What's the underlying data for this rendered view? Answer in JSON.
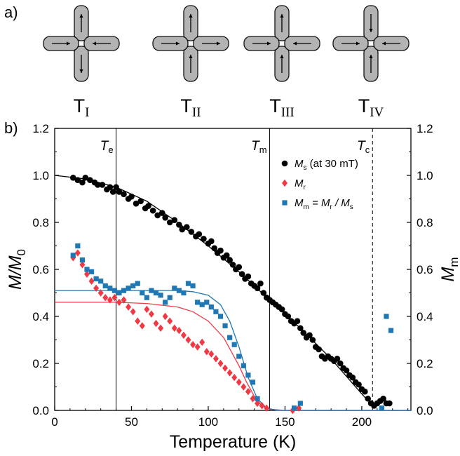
{
  "panel_a": {
    "label": "a)",
    "vertices": [
      {
        "name": "T",
        "sub": "I",
        "arrows": {
          "top": "up",
          "bottom": "down",
          "left": "right",
          "right": "left"
        }
      },
      {
        "name": "T",
        "sub": "II",
        "arrows": {
          "top": "up",
          "bottom": "up",
          "left": "right",
          "right": "right"
        }
      },
      {
        "name": "T",
        "sub": "III",
        "arrows": {
          "top": "up",
          "bottom": "up",
          "left": "right",
          "right": "left"
        }
      },
      {
        "name": "T",
        "sub": "IV",
        "arrows": {
          "top": "down",
          "bottom": "up",
          "left": "right",
          "right": "left"
        }
      }
    ],
    "colors": {
      "arm_fill": "#b3b3b3",
      "arm_stroke": "#111111"
    }
  },
  "panel_b": {
    "label": "b)"
  },
  "chart_data": {
    "type": "scatter",
    "xlabel": "Temperature (K)",
    "ylabel_main": "M/M",
    "ylabel_main_sub": "0",
    "ylabel_right": "M",
    "ylabel_right_sub": "m",
    "xlim": [
      0,
      232
    ],
    "ylim": [
      0,
      1.2
    ],
    "xticks": [
      "0",
      "50",
      "100",
      "150",
      "200"
    ],
    "xtick_values": [
      0,
      50,
      100,
      150,
      200
    ],
    "yticks": [
      "0.0",
      "0.2",
      "0.4",
      "0.6",
      "0.8",
      "1.0",
      "1.2"
    ],
    "ytick_values": [
      0,
      0.2,
      0.4,
      0.6,
      0.8,
      1.0,
      1.2
    ],
    "vertical_lines": [
      {
        "label": "T",
        "sub": "e",
        "x": 40,
        "style": "solid"
      },
      {
        "label": "T",
        "sub": "m",
        "x": 140,
        "style": "solid"
      },
      {
        "label": "T",
        "sub": "c",
        "x": 207,
        "style": "dashed"
      }
    ],
    "legend": [
      {
        "series": "Ms",
        "text": "M",
        "sub": "s",
        "extra": " (at 30 mT)"
      },
      {
        "series": "Mr",
        "text": "M",
        "sub": "r",
        "extra": ""
      },
      {
        "series": "Mm",
        "text": "M",
        "sub": "m",
        "extra": " = M",
        "sub2": "r",
        "extra2": " / M",
        "sub3": "s"
      }
    ],
    "series": [
      {
        "name": "Ms",
        "marker": "circle",
        "color": "#000000",
        "x": [
          12,
          15,
          18,
          20,
          23,
          26,
          28,
          31,
          34,
          36,
          38,
          40,
          42,
          45,
          48,
          50,
          53,
          56,
          59,
          61,
          64,
          67,
          70,
          72,
          75,
          78,
          81,
          83,
          86,
          89,
          92,
          94,
          97,
          100,
          102,
          104,
          106,
          108,
          110,
          112,
          114,
          116,
          118,
          120,
          122,
          124,
          126,
          128,
          130,
          132,
          134,
          136,
          138,
          140,
          142,
          144,
          146,
          148,
          150,
          152,
          154,
          156,
          158,
          160,
          162,
          164,
          166,
          168,
          170,
          172,
          174,
          176,
          178,
          180,
          182,
          184,
          186,
          188,
          190,
          192,
          194,
          196,
          198,
          200,
          202,
          204,
          206,
          208,
          210,
          212,
          214,
          216,
          218
        ],
        "y": [
          0.99,
          0.98,
          0.97,
          0.99,
          0.98,
          0.97,
          0.96,
          0.96,
          0.94,
          0.95,
          0.93,
          0.95,
          0.93,
          0.92,
          0.9,
          0.91,
          0.88,
          0.89,
          0.86,
          0.87,
          0.85,
          0.83,
          0.84,
          0.82,
          0.8,
          0.81,
          0.79,
          0.77,
          0.78,
          0.76,
          0.74,
          0.75,
          0.73,
          0.71,
          0.72,
          0.69,
          0.67,
          0.68,
          0.65,
          0.66,
          0.64,
          0.62,
          0.6,
          0.61,
          0.58,
          0.56,
          0.57,
          0.54,
          0.53,
          0.52,
          0.54,
          0.5,
          0.48,
          0.47,
          0.46,
          0.45,
          0.44,
          0.43,
          0.41,
          0.4,
          0.38,
          0.37,
          0.38,
          0.35,
          0.33,
          0.31,
          0.32,
          0.3,
          0.27,
          0.26,
          0.23,
          0.22,
          0.23,
          0.22,
          0.21,
          0.22,
          0.2,
          0.18,
          0.17,
          0.15,
          0.14,
          0.12,
          0.11,
          0.09,
          0.08,
          0.05,
          0.03,
          0.02,
          0.03,
          0.04,
          0.05,
          0.03,
          0.03
        ]
      },
      {
        "name": "Mr",
        "marker": "diamond",
        "color": "#ef3a46",
        "x": [
          12,
          15,
          18,
          21,
          24,
          27,
          30,
          33,
          36,
          39,
          42,
          45,
          48,
          51,
          54,
          57,
          60,
          63,
          66,
          69,
          72,
          75,
          78,
          81,
          84,
          87,
          90,
          93,
          96,
          99,
          102,
          105,
          108,
          111,
          114,
          117,
          120,
          123,
          126,
          129,
          132,
          135,
          138,
          155,
          159
        ],
        "y": [
          0.65,
          0.67,
          0.62,
          0.58,
          0.55,
          0.52,
          0.5,
          0.48,
          0.47,
          0.48,
          0.46,
          0.47,
          0.44,
          0.42,
          0.38,
          0.36,
          0.43,
          0.41,
          0.37,
          0.35,
          0.4,
          0.38,
          0.35,
          0.34,
          0.32,
          0.3,
          0.28,
          0.27,
          0.29,
          0.25,
          0.24,
          0.22,
          0.2,
          0.18,
          0.16,
          0.14,
          0.12,
          0.1,
          0.08,
          0.05,
          0.03,
          0.02,
          0.01,
          0.0,
          0.01
        ]
      },
      {
        "name": "Mm",
        "marker": "square",
        "color": "#1f77b4",
        "x": [
          12,
          15,
          18,
          21,
          24,
          27,
          30,
          33,
          36,
          39,
          42,
          45,
          48,
          51,
          54,
          57,
          60,
          63,
          66,
          69,
          72,
          75,
          78,
          81,
          84,
          87,
          90,
          93,
          96,
          99,
          102,
          105,
          108,
          111,
          114,
          117,
          120,
          123,
          126,
          129,
          132,
          156,
          160,
          213,
          216,
          219
        ],
        "y": [
          0.66,
          0.7,
          0.64,
          0.6,
          0.59,
          0.56,
          0.55,
          0.53,
          0.52,
          0.51,
          0.5,
          0.51,
          0.52,
          0.53,
          0.54,
          0.5,
          0.48,
          0.51,
          0.5,
          0.49,
          0.46,
          0.48,
          0.52,
          0.51,
          0.5,
          0.54,
          0.53,
          0.46,
          0.45,
          0.46,
          0.44,
          0.42,
          0.4,
          0.36,
          0.31,
          0.28,
          0.23,
          0.19,
          0.15,
          0.12,
          0.05,
          0.01,
          0.03,
          0.01,
          0.4,
          0.34
        ]
      }
    ],
    "fit_curves": [
      {
        "series": "Ms",
        "color": "#000000",
        "x": [
          0,
          20,
          40,
          60,
          80,
          100,
          120,
          140,
          160,
          180,
          200,
          207
        ],
        "y": [
          1.0,
          0.985,
          0.95,
          0.89,
          0.8,
          0.7,
          0.59,
          0.47,
          0.35,
          0.22,
          0.07,
          0.02
        ]
      },
      {
        "series": "Mr",
        "color": "#ef3a46",
        "x": [
          0,
          20,
          40,
          60,
          80,
          90,
          100,
          110,
          120,
          125,
          130,
          135,
          140,
          150,
          232
        ],
        "y": [
          0.46,
          0.46,
          0.46,
          0.455,
          0.44,
          0.42,
          0.38,
          0.31,
          0.19,
          0.12,
          0.06,
          0.02,
          0.005,
          0.0,
          0.0
        ]
      },
      {
        "series": "Mm",
        "color": "#1f77b4",
        "x": [
          0,
          20,
          40,
          60,
          80,
          90,
          100,
          108,
          114,
          120,
          126,
          132,
          138,
          145,
          232
        ],
        "y": [
          0.51,
          0.51,
          0.51,
          0.51,
          0.51,
          0.505,
          0.49,
          0.45,
          0.38,
          0.27,
          0.14,
          0.05,
          0.01,
          0.0,
          0.0
        ]
      }
    ]
  }
}
